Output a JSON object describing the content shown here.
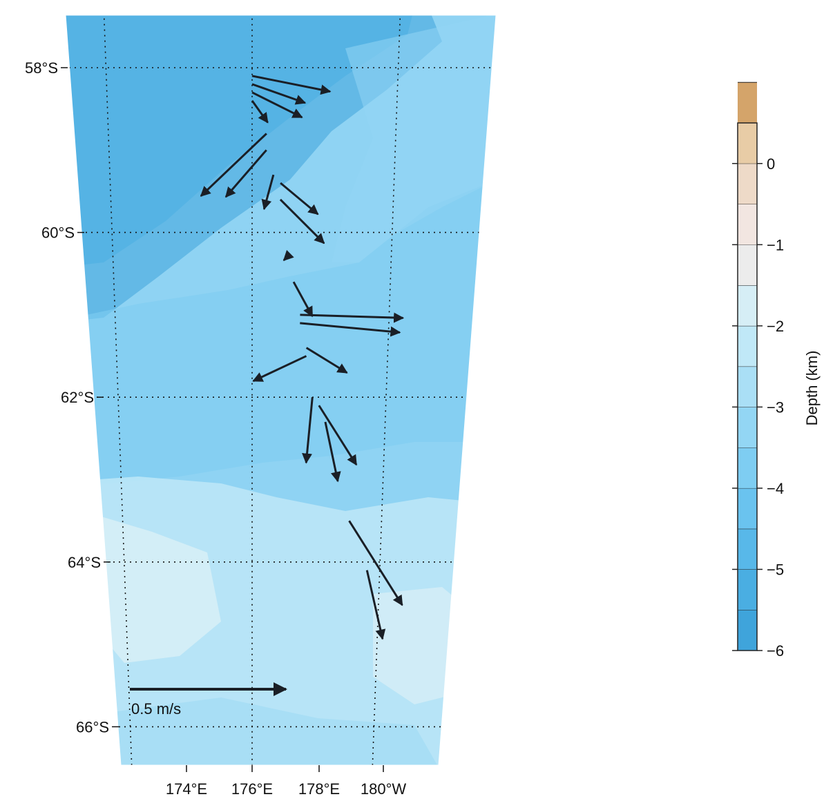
{
  "map": {
    "projection": "polar stereographic (sector)",
    "lat_labels": [
      {
        "label": "58°S",
        "deg": "58",
        "suffix": "S",
        "lat": -58
      },
      {
        "label": "60°S",
        "deg": "60",
        "suffix": "S",
        "lat": -60
      },
      {
        "label": "62°S",
        "deg": "62",
        "suffix": "S",
        "lat": -62
      },
      {
        "label": "64°S",
        "deg": "64",
        "suffix": "S",
        "lat": -64
      },
      {
        "label": "66°S",
        "deg": "66",
        "suffix": "S",
        "lat": -66
      }
    ],
    "lon_labels": [
      {
        "label": "174°E",
        "deg": "174",
        "suffix": "E",
        "lon": 174
      },
      {
        "label": "176°E",
        "deg": "176",
        "suffix": "E",
        "lon": 176
      },
      {
        "label": "178°E",
        "deg": "178",
        "suffix": "E",
        "lon": 178
      },
      {
        "label": "180°W",
        "deg": "180",
        "suffix": "W",
        "lon": 180
      }
    ],
    "grid": "dotted",
    "scale_arrow": {
      "label": "0.5 m/s",
      "speed": 0.5
    },
    "arrow_color": "#1a1f26"
  },
  "colorbar": {
    "title": "Depth (km)",
    "range_km": [
      -6,
      0.5
    ],
    "step_km": 0.5,
    "tick_labels": [
      {
        "text": "0",
        "value": 0
      },
      {
        "text": "−1",
        "value": -1
      },
      {
        "text": "−2",
        "value": -2
      },
      {
        "text": "−3",
        "value": -3
      },
      {
        "text": "−4",
        "value": -4
      },
      {
        "text": "−5",
        "value": -5
      },
      {
        "text": "−6",
        "value": -6
      }
    ],
    "colors": [
      "#3fa4db",
      "#4aaee2",
      "#58b8e9",
      "#6ac3ef",
      "#7ecdf2",
      "#93d6f4",
      "#aadff6",
      "#c0e8f7",
      "#d6eef6",
      "#ececec",
      "#f2e6e1",
      "#eedac8",
      "#e8cca6",
      "#d4a46a"
    ]
  },
  "ocean": {
    "bands": [
      {
        "from": -57,
        "to": -58.3,
        "color": "#5ab9e9"
      },
      {
        "from": -58.3,
        "to": -60.6,
        "color": "#62bdeb"
      },
      {
        "from": -60.6,
        "to": -62.8,
        "color": "#8fd3f3"
      },
      {
        "from": -62.8,
        "to": -65.2,
        "color": "#b7e4f7"
      },
      {
        "from": -65.2,
        "to": -67,
        "color": "#a6ddf5"
      }
    ]
  },
  "current_vectors": [
    {
      "lat": -58.1,
      "lon": 176.0,
      "u": 0.25,
      "v": -0.05
    },
    {
      "lat": -58.2,
      "lon": 176.0,
      "u": 0.17,
      "v": -0.06
    },
    {
      "lat": -58.3,
      "lon": 176.0,
      "u": 0.16,
      "v": -0.08
    },
    {
      "lat": -58.4,
      "lon": 176.0,
      "u": 0.05,
      "v": -0.07
    },
    {
      "lat": -58.8,
      "lon": 176.2,
      "u": -0.21,
      "v": -0.2
    },
    {
      "lat": -59.0,
      "lon": 176.2,
      "u": -0.13,
      "v": -0.15
    },
    {
      "lat": -59.3,
      "lon": 176.3,
      "u": -0.03,
      "v": -0.11
    },
    {
      "lat": -59.4,
      "lon": 176.4,
      "u": 0.12,
      "v": -0.1
    },
    {
      "lat": -59.6,
      "lon": 176.4,
      "u": 0.14,
      "v": -0.14
    },
    {
      "lat": -60.3,
      "lon": 176.5,
      "u": -0.01,
      "v": -0.01
    },
    {
      "lat": -60.6,
      "lon": 176.6,
      "u": 0.06,
      "v": -0.11
    },
    {
      "lat": -61.0,
      "lon": 176.7,
      "u": 0.33,
      "v": -0.01
    },
    {
      "lat": -61.1,
      "lon": 176.7,
      "u": 0.32,
      "v": -0.03
    },
    {
      "lat": -61.4,
      "lon": 176.8,
      "u": 0.13,
      "v": -0.08
    },
    {
      "lat": -61.5,
      "lon": 176.8,
      "u": -0.17,
      "v": -0.08
    },
    {
      "lat": -62.0,
      "lon": 176.9,
      "u": -0.02,
      "v": -0.21
    },
    {
      "lat": -62.1,
      "lon": 177.0,
      "u": 0.12,
      "v": -0.19
    },
    {
      "lat": -62.3,
      "lon": 177.1,
      "u": 0.04,
      "v": -0.19
    },
    {
      "lat": -63.5,
      "lon": 177.5,
      "u": 0.17,
      "v": -0.27
    },
    {
      "lat": -64.1,
      "lon": 177.8,
      "u": 0.05,
      "v": -0.22
    }
  ]
}
